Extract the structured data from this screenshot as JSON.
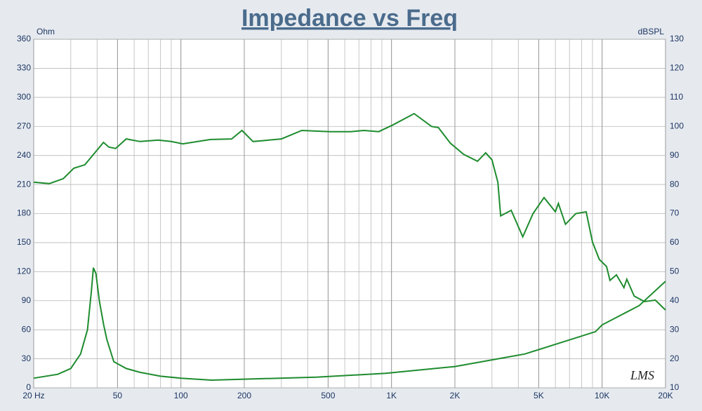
{
  "chart_data": {
    "type": "line",
    "title": "Impedance vs Freq",
    "ylabel": "Ohm",
    "y2label": "dBSPL",
    "annotation": "LMS",
    "xscale": "log",
    "grid": true,
    "xlim": [
      20,
      20000
    ],
    "xticks": [
      {
        "value": 20,
        "label": "20 Hz"
      },
      50,
      100,
      200,
      500,
      {
        "value": 1000,
        "label": "1K"
      },
      {
        "value": 2000,
        "label": "2K"
      },
      {
        "value": 5000,
        "label": "5K"
      },
      {
        "value": 10000,
        "label": "10K"
      },
      {
        "value": 20000,
        "label": "20K"
      }
    ],
    "ylim": [
      0,
      360
    ],
    "yticks": [
      0,
      30,
      60,
      90,
      120,
      150,
      180,
      210,
      240,
      270,
      300,
      330,
      360
    ],
    "y2lim": [
      10,
      130
    ],
    "y2ticks": [
      10,
      20,
      30,
      40,
      50,
      60,
      70,
      80,
      90,
      100,
      110,
      120,
      130
    ],
    "series": [
      {
        "color": "#1e8c2e",
        "axis": "y2",
        "x": [
          20,
          23.7,
          27.6,
          31,
          35,
          42.9,
          45.5,
          49,
          55,
          64,
          78,
          90,
          102,
          138,
          174,
          195,
          220,
          300,
          375,
          510,
          640,
          740,
          870,
          1020,
          1280,
          1550,
          1670,
          1900,
          2200,
          2560,
          2800,
          3000,
          3200,
          3300,
          3700,
          4200,
          4700,
          5300,
          6000,
          6200,
          6700,
          7500,
          8400,
          9000,
          9700,
          10500,
          10900,
          11700,
          12700,
          13100,
          14200,
          15900,
          17900,
          20000
        ],
        "values": [
          80.8,
          80.3,
          82,
          85.6,
          86.8,
          94.5,
          92.9,
          92.4,
          95.7,
          94.8,
          95.3,
          94.8,
          94,
          95.5,
          95.7,
          98.6,
          94.8,
          95.7,
          98.6,
          98.2,
          98.2,
          98.6,
          98.2,
          100.6,
          104.4,
          100,
          99.6,
          94.3,
          90.4,
          88,
          90.9,
          88.5,
          80.8,
          69.2,
          71.1,
          62,
          70,
          75.5,
          70.6,
          73.5,
          66.3,
          70,
          70.6,
          60.2,
          54.2,
          51.8,
          47,
          48.9,
          44.5,
          47.4,
          41.6,
          39.7,
          40.2,
          36.8
        ]
      },
      {
        "color": "#1e8c2e",
        "axis": "y",
        "x": [
          20,
          26,
          30,
          33.4,
          36,
          37.6,
          38.4,
          39.5,
          41,
          43,
          44.5,
          48,
          55,
          64,
          80,
          100,
          140,
          200,
          440,
          940,
          2000,
          4300,
          9300,
          10000,
          15000,
          20000
        ],
        "values": [
          10,
          14,
          20,
          35,
          60,
          100,
          124,
          118,
          90,
          65,
          50,
          27,
          20,
          16,
          12,
          10,
          8,
          9,
          11,
          15,
          22,
          35,
          58,
          65,
          85,
          110
        ]
      }
    ]
  }
}
